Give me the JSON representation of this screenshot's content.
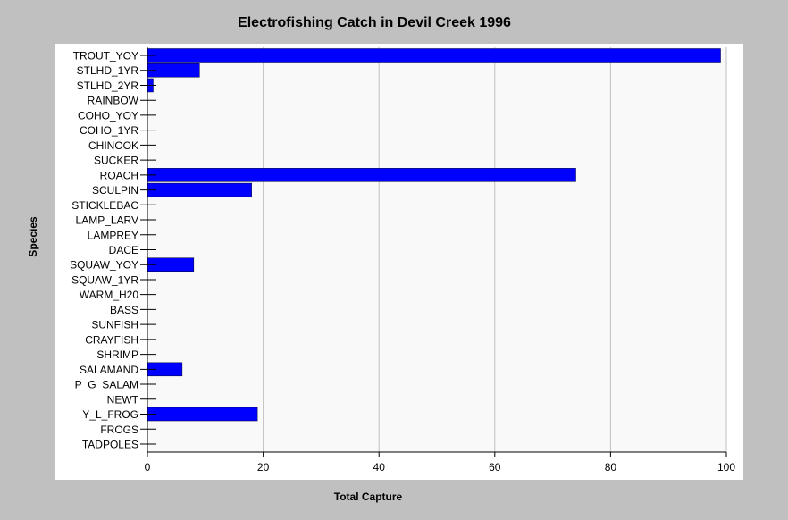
{
  "chart_data": {
    "type": "bar",
    "orientation": "horizontal",
    "title": "Electrofishing Catch in Devil Creek 1996",
    "xlabel": "Total Capture",
    "ylabel": "Species",
    "xlim": [
      0,
      100
    ],
    "xticks": [
      0,
      20,
      40,
      60,
      80,
      100
    ],
    "grid": true,
    "bar_color": "#0000ff",
    "categories": [
      "TROUT_YOY",
      "STLHD_1YR",
      "STLHD_2YR",
      "RAINBOW",
      "COHO_YOY",
      "COHO_1YR",
      "CHINOOK",
      "SUCKER",
      "ROACH",
      "SCULPIN",
      "STICKLEBAC",
      "LAMP_LARV",
      "LAMPREY",
      "DACE",
      "SQUAW_YOY",
      "SQUAW_1YR",
      "WARM_H20",
      "BASS",
      "SUNFISH",
      "CRAYFISH",
      "SHRIMP",
      "SALAMAND",
      "P_G_SALAM",
      "NEWT",
      "Y_L_FROG",
      "FROGS",
      "TADPOLES"
    ],
    "values": [
      99,
      9,
      1,
      0,
      0,
      0,
      0,
      0,
      74,
      18,
      0,
      0,
      0,
      0,
      8,
      0,
      0,
      0,
      0,
      0,
      0,
      6,
      0,
      0,
      19,
      0,
      0
    ]
  }
}
